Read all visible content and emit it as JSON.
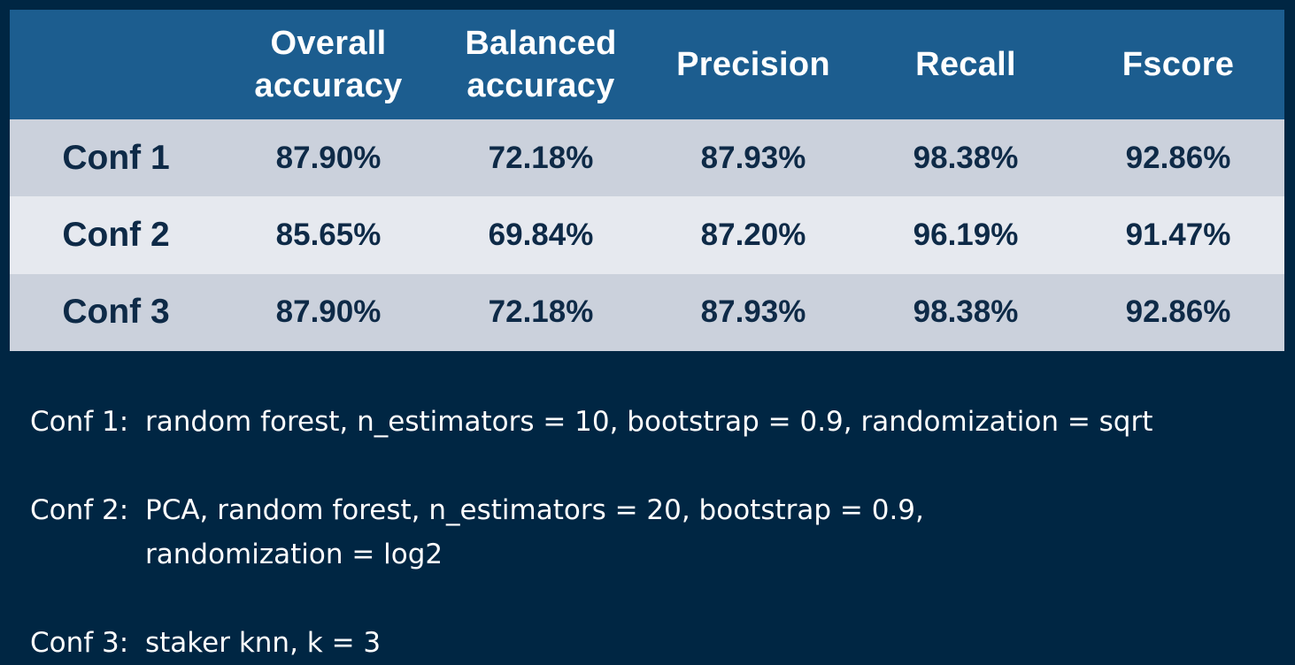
{
  "table": {
    "columns": [
      {
        "lines": []
      },
      {
        "lines": [
          "Overall",
          "accuracy"
        ]
      },
      {
        "lines": [
          "Balanced",
          "accuracy"
        ]
      },
      {
        "lines": [
          "Precision"
        ]
      },
      {
        "lines": [
          "Recall"
        ]
      },
      {
        "lines": [
          "Fscore"
        ]
      }
    ],
    "rows": [
      {
        "label": "Conf 1",
        "values": [
          "87.90%",
          "72.18%",
          "87.93%",
          "98.38%",
          "92.86%"
        ]
      },
      {
        "label": "Conf 2",
        "values": [
          "85.65%",
          "69.84%",
          "87.20%",
          "96.19%",
          "91.47%"
        ]
      },
      {
        "label": "Conf 3",
        "values": [
          "87.90%",
          "72.18%",
          "87.93%",
          "98.38%",
          "92.86%"
        ]
      }
    ]
  },
  "notes": [
    {
      "key": "Conf 1:",
      "lines": [
        "random forest, n_estimators = 10, bootstrap = 0.9, randomization = sqrt"
      ]
    },
    {
      "key": "Conf 2:",
      "lines": [
        "PCA, random forest, n_estimators = 20, bootstrap = 0.9,",
        "randomization = log2"
      ]
    },
    {
      "key": "Conf 3:",
      "lines": [
        "staker knn, k = 3"
      ]
    }
  ],
  "colors": {
    "background": "#002643",
    "header": "#1c5d8f",
    "row_dark": "#cbd1dc",
    "row_light": "#e6e9ef",
    "cell_text": "#0e2a47"
  }
}
